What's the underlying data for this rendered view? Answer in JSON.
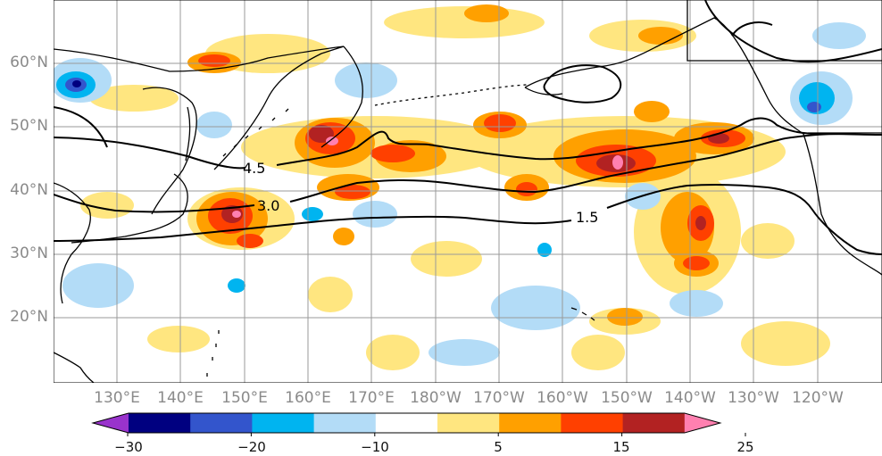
{
  "map": {
    "latitude_labels": [
      "60°N",
      "50°N",
      "40°N",
      "30°N",
      "20°N"
    ],
    "longitude_labels": [
      "130°E",
      "140°E",
      "150°E",
      "160°E",
      "170°E",
      "180°W",
      "170°W",
      "160°W",
      "150°W",
      "140°W",
      "130°W",
      "120°W"
    ],
    "contour_labels": [
      "4.5",
      "3.0",
      "1.5"
    ],
    "contour_color": "#000000",
    "coastline_color": "#000000",
    "grid_color": "#9a9a9a"
  },
  "colorbar": {
    "tick_labels": [
      "−30",
      "−20",
      "−10",
      "5",
      "15",
      "25"
    ],
    "colors": [
      "#9933cc",
      "#000080",
      "#3355cc",
      "#00b4f0",
      "#b3dcf7",
      "#ffffff",
      "#ffe680",
      "#ffa000",
      "#ff4000",
      "#b22222",
      "#ff80b0"
    ],
    "extend": "both"
  }
}
